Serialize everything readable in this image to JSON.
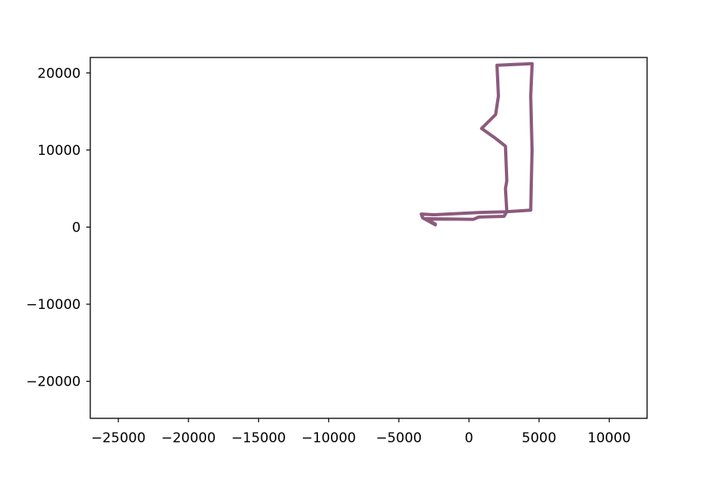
{
  "chart_data": {
    "type": "line",
    "title": "",
    "xlabel": "",
    "ylabel": "",
    "xlim": [
      -27000,
      12700
    ],
    "ylim": [
      -24800,
      22000
    ],
    "xticks": [
      -25000,
      -20000,
      -15000,
      -10000,
      -5000,
      0,
      5000,
      10000
    ],
    "xtick_labels": [
      "−25000",
      "−20000",
      "−15000",
      "−10000",
      "−5000",
      "0",
      "5000",
      "10000"
    ],
    "yticks": [
      20000,
      10000,
      0,
      -10000,
      -20000
    ],
    "ytick_labels": [
      "20000",
      "10000",
      "0",
      "−10000",
      "−20000"
    ],
    "grid": false,
    "legend": "none",
    "color": "#8c5a7d",
    "series": [
      {
        "x": [
          -2400,
          -3300,
          -3400,
          -2500,
          800,
          2700,
          4400,
          4500,
          4400,
          4500,
          4500,
          2000,
          2100,
          1900,
          900,
          1900,
          2600,
          2700,
          2600,
          2700,
          2500,
          700,
          300,
          -3200,
          -2600,
          -2400
        ],
        "y": [
          300,
          1200,
          1700,
          1600,
          1900,
          2000,
          2200,
          10000,
          17000,
          21000,
          21200,
          21000,
          17000,
          14600,
          12800,
          11500,
          10500,
          6000,
          5000,
          2000,
          1400,
          1300,
          1000,
          1100,
          600,
          400
        ]
      }
    ]
  }
}
